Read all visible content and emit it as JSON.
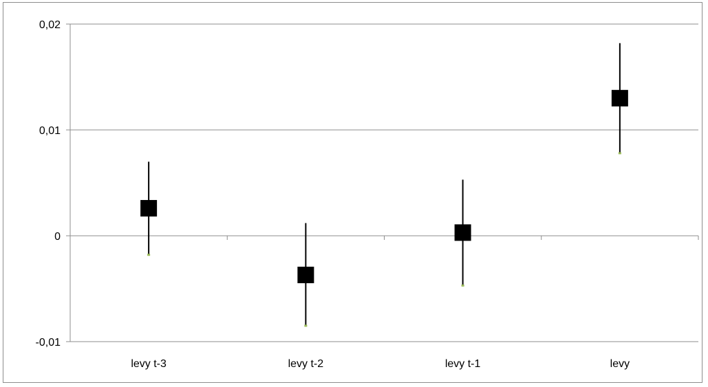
{
  "chart_data": {
    "type": "scatter",
    "title": "",
    "xlabel": "",
    "ylabel": "",
    "categories": [
      "levy t-3",
      "levy t-2",
      "levy t-1",
      "levy"
    ],
    "ylim": [
      -0.01,
      0.02
    ],
    "yticks": [
      -0.01,
      0,
      0.01,
      0.02
    ],
    "ytick_labels": [
      "-0,01",
      "0",
      "0,01",
      "0,02"
    ],
    "grid": true,
    "legend": "none",
    "series": [
      {
        "values": [
          0.0026,
          -0.0037,
          0.0003,
          0.013
        ],
        "lower": [
          -0.0018,
          -0.0085,
          -0.0047,
          0.0078
        ],
        "upper": [
          0.007,
          0.0012,
          0.0053,
          0.0182
        ]
      }
    ],
    "colors": {
      "marker": "#000000",
      "error_bar": "#000000",
      "lower_cap": "#9bbb59",
      "grid": "#8c8c8c",
      "axis": "#8c8c8c"
    }
  }
}
